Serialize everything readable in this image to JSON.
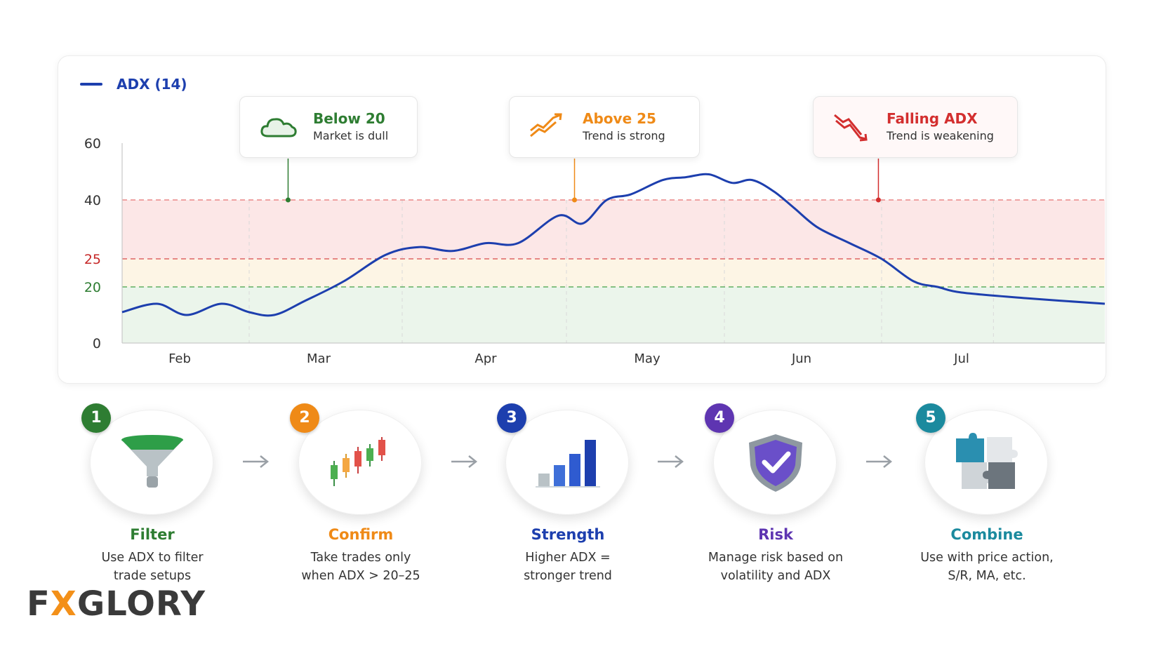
{
  "legend": {
    "label": "ADX (14)",
    "color": "#1d3fae"
  },
  "callouts": [
    {
      "title": "Below 20",
      "subtitle": "Market is dull",
      "color": "#2e7d32",
      "icon": "cloud-icon",
      "x_month": 1.78,
      "y": 40
    },
    {
      "title": "Above 25",
      "subtitle": "Trend is strong",
      "color": "#ef8a17",
      "icon": "trend-up-icon",
      "x_month": 3.55,
      "y": 40
    },
    {
      "title": "Falling ADX",
      "subtitle": "Trend is weakening",
      "color": "#d32f2f",
      "icon": "trend-down-icon",
      "x_month": 5.48,
      "y": 40
    }
  ],
  "chart_data": {
    "type": "line",
    "series": [
      {
        "name": "ADX (14)",
        "color": "#1d3fae",
        "x": [
          0.62,
          0.85,
          1.05,
          1.3,
          1.5,
          1.68,
          1.9,
          2.15,
          2.4,
          2.6,
          2.8,
          3.0,
          3.2,
          3.45,
          3.6,
          3.75,
          3.9,
          4.1,
          4.25,
          4.4,
          4.55,
          4.68,
          4.82,
          4.95,
          5.1,
          5.3,
          5.5,
          5.7,
          5.85,
          6.0,
          6.2,
          6.45
        ],
        "y": [
          11,
          14,
          10,
          14,
          11,
          10,
          15,
          21,
          26,
          28,
          27,
          29,
          29,
          36,
          34,
          40,
          42,
          47,
          48,
          49,
          46,
          47,
          43,
          38,
          33,
          29,
          25,
          21,
          20,
          18,
          16,
          14
        ]
      }
    ],
    "categories": [
      "Feb",
      "Mar",
      "Apr",
      "May",
      "Jun",
      "Jul"
    ],
    "category_positions": [
      1,
      2,
      3,
      4,
      5,
      6
    ],
    "xlim": [
      0.62,
      6.45
    ],
    "ylim": [
      0,
      60
    ],
    "y_ticks": [
      {
        "value": 60,
        "label": "60",
        "color": "#333333"
      },
      {
        "value": 40,
        "label": "40",
        "color": "#333333"
      },
      {
        "value": 25,
        "label": "25",
        "color": "#c62828"
      },
      {
        "value": 20,
        "label": "20",
        "color": "#2e7d32"
      },
      {
        "value": 0,
        "label": "0",
        "color": "#333333"
      }
    ],
    "thresholds": [
      {
        "value": 40,
        "color": "#e57373"
      },
      {
        "value": 25,
        "color": "#d84a4a"
      },
      {
        "value": 20,
        "color": "#43a047"
      }
    ],
    "bands": [
      {
        "from": 25,
        "to": 40,
        "color": "#fbe3e3"
      },
      {
        "from": 20,
        "to": 25,
        "color": "#fdf3e0"
      },
      {
        "from": 0,
        "to": 20,
        "color": "#e8f3e8"
      }
    ],
    "grid": true
  },
  "steps": [
    {
      "number": "1",
      "title": "Filter",
      "desc1": "Use ADX to filter",
      "desc2": "trade setups",
      "color": "#2e7d32",
      "icon": "funnel-icon"
    },
    {
      "number": "2",
      "title": "Confirm",
      "desc1": "Take trades only",
      "desc2": "when ADX > 20–25",
      "color": "#ef8a17",
      "icon": "candlestick-icon"
    },
    {
      "number": "3",
      "title": "Strength",
      "desc1": "Higher ADX =",
      "desc2": "stronger trend",
      "color": "#1d3fae",
      "icon": "bar-chart-icon"
    },
    {
      "number": "4",
      "title": "Risk",
      "desc1": "Manage risk based on",
      "desc2": "volatility and ADX",
      "color": "#5e35b1",
      "icon": "shield-check-icon"
    },
    {
      "number": "5",
      "title": "Combine",
      "desc1": "Use with price action,",
      "desc2": "S/R, MA, etc.",
      "color": "#1b8a9e",
      "icon": "puzzle-icon"
    }
  ],
  "logo": {
    "part1": "F",
    "part2": "X",
    "part3": "GLORY"
  }
}
